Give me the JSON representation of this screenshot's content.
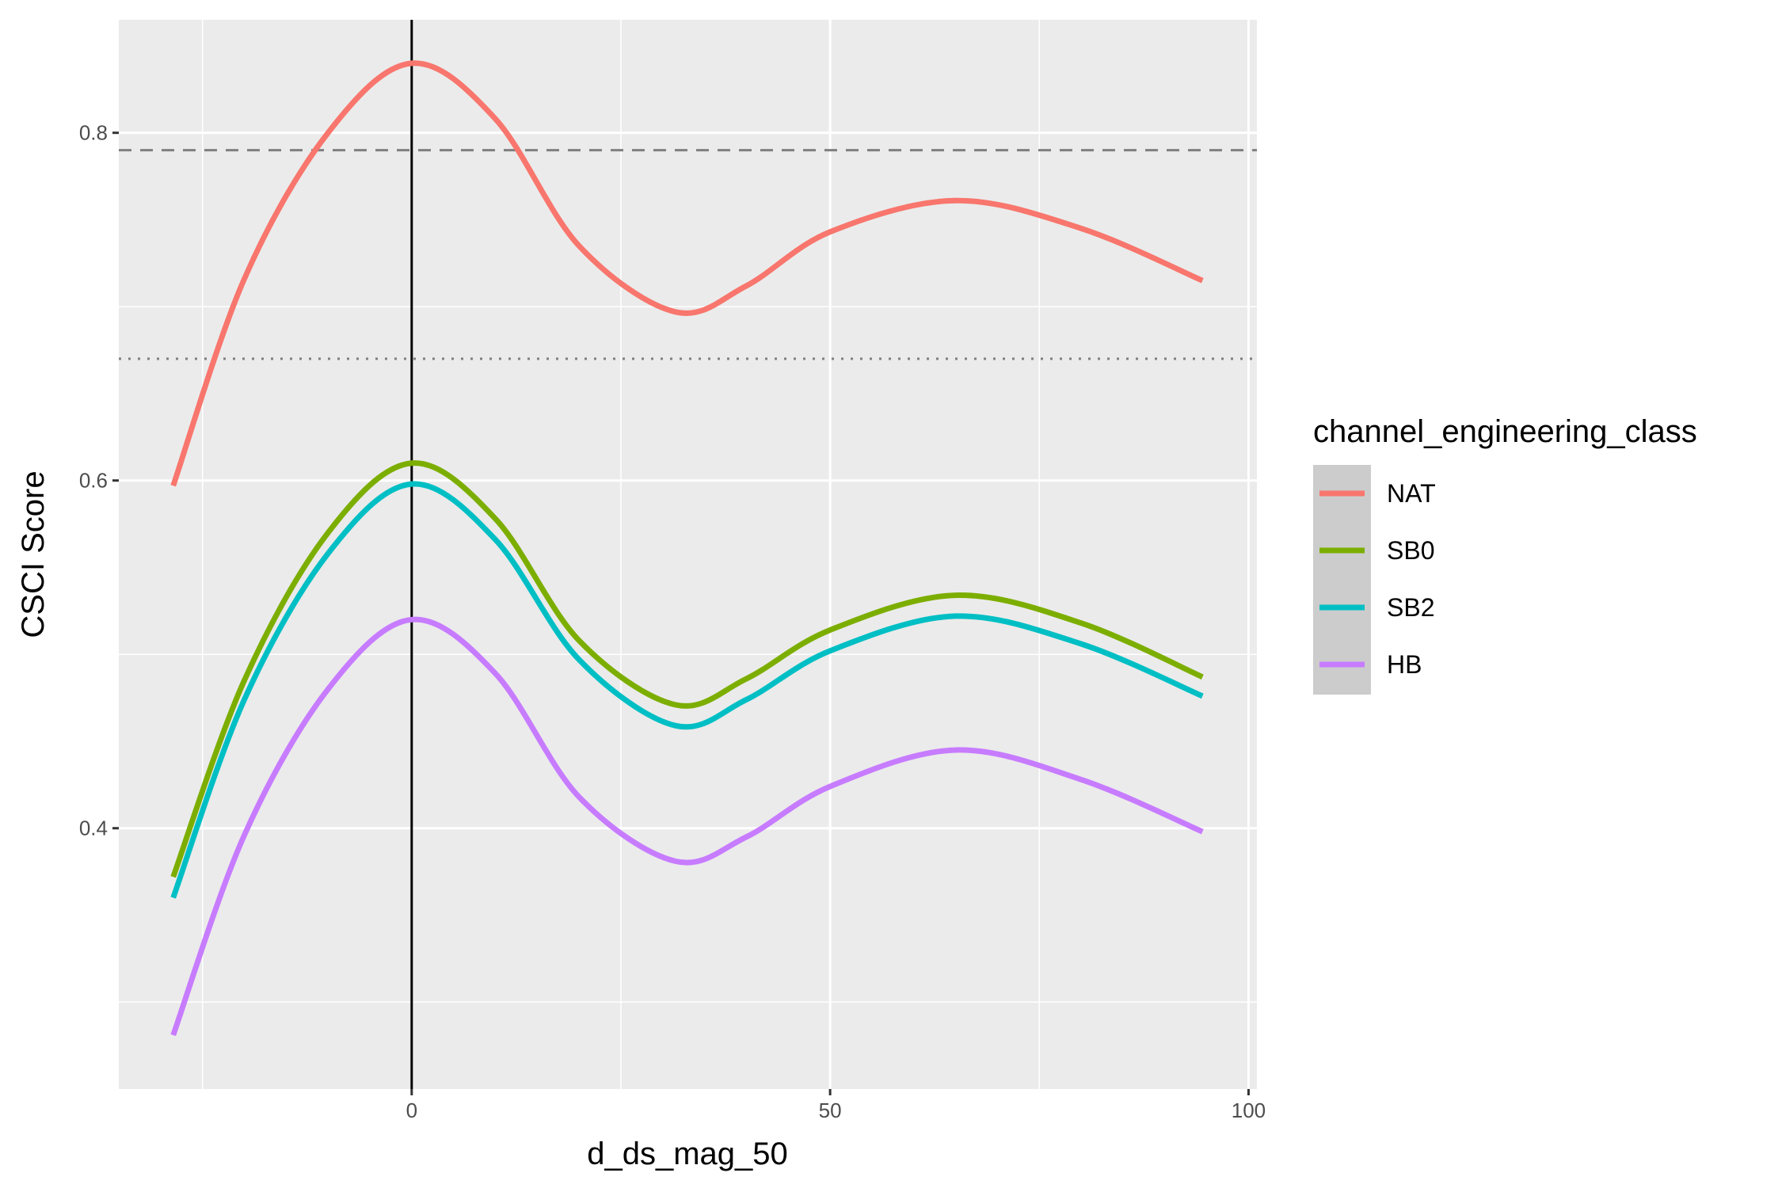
{
  "chart_data": {
    "type": "line",
    "title": "",
    "xlabel": "d_ds_mag_50",
    "ylabel": "CSCI Score",
    "xlim": [
      -35,
      101
    ],
    "ylim": [
      0.25,
      0.865
    ],
    "x_ticks": [
      0,
      50,
      100
    ],
    "x_tick_labels": [
      "0",
      "50",
      "100"
    ],
    "y_ticks": [
      0.4,
      0.6,
      0.8
    ],
    "y_tick_labels": [
      "0.4",
      "0.6",
      "0.8"
    ],
    "x_minor_grid": [
      -25,
      25,
      75
    ],
    "y_minor_grid": [
      0.3,
      0.5,
      0.7
    ],
    "grid": true,
    "background": "#EBEBEB",
    "reference_lines": [
      {
        "orientation": "horizontal",
        "value": 0.79,
        "style": "dashed",
        "color": "#7F7F7F"
      },
      {
        "orientation": "horizontal",
        "value": 0.67,
        "style": "dotted",
        "color": "#7F7F7F"
      },
      {
        "orientation": "vertical",
        "value": 0,
        "style": "solid",
        "color": "#000000"
      }
    ],
    "legend": {
      "title": "channel_engineering_class",
      "position": "right"
    },
    "x": [
      -28.5,
      -20,
      -10,
      0,
      10,
      20,
      31.5,
      40,
      50,
      65,
      80,
      94.5
    ],
    "series": [
      {
        "name": "NAT",
        "color": "#F8766D",
        "values": [
          0.597,
          0.716,
          0.8,
          0.84,
          0.808,
          0.735,
          0.697,
          0.712,
          0.743,
          0.761,
          0.745,
          0.715
        ]
      },
      {
        "name": "SB0",
        "color": "#7CAE00",
        "values": [
          0.372,
          0.485,
          0.57,
          0.61,
          0.578,
          0.508,
          0.471,
          0.486,
          0.514,
          0.534,
          0.518,
          0.487
        ]
      },
      {
        "name": "SB2",
        "color": "#00BFC4",
        "values": [
          0.36,
          0.474,
          0.558,
          0.598,
          0.566,
          0.497,
          0.459,
          0.474,
          0.502,
          0.522,
          0.506,
          0.476
        ]
      },
      {
        "name": "HB",
        "color": "#C77CFF",
        "values": [
          0.281,
          0.396,
          0.48,
          0.52,
          0.489,
          0.418,
          0.381,
          0.395,
          0.424,
          0.445,
          0.428,
          0.398
        ]
      }
    ]
  }
}
